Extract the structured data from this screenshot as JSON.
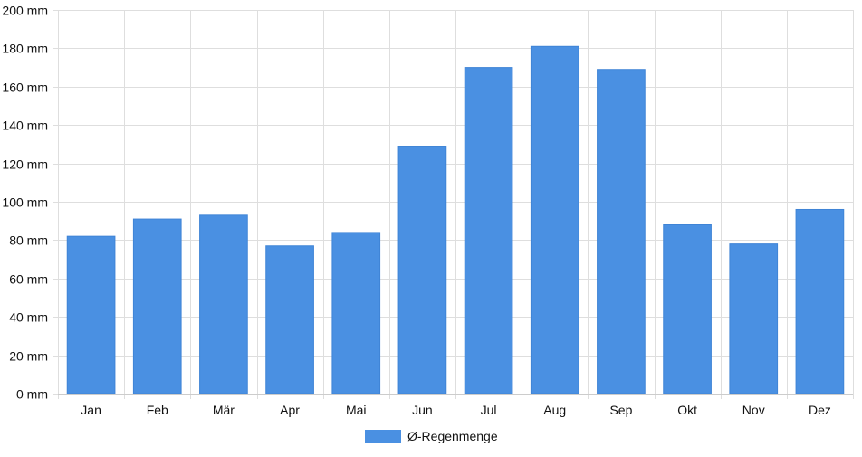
{
  "chart_data": {
    "type": "bar",
    "categories": [
      "Jan",
      "Feb",
      "Mär",
      "Apr",
      "Mai",
      "Jun",
      "Jul",
      "Aug",
      "Sep",
      "Okt",
      "Nov",
      "Dez"
    ],
    "series": [
      {
        "name": "Ø-Regenmenge",
        "values": [
          82,
          91,
          93,
          77,
          84,
          129,
          170,
          181,
          169,
          88,
          78,
          96
        ],
        "color": "#4a90e2"
      }
    ],
    "title": "",
    "xlabel": "",
    "ylabel": "",
    "ylim": [
      0,
      200
    ],
    "y_ticks": [
      0,
      20,
      40,
      60,
      80,
      100,
      120,
      140,
      160,
      180,
      200
    ],
    "y_unit_suffix": " mm",
    "grid": true,
    "legend_position": "bottom-center"
  }
}
